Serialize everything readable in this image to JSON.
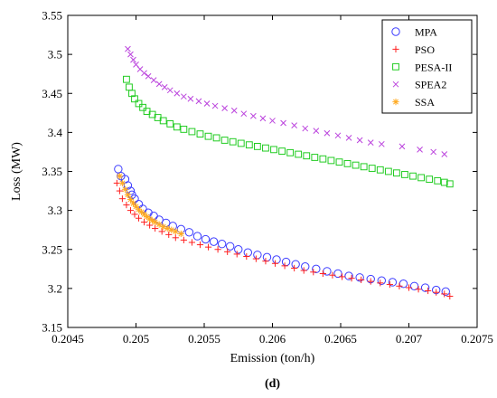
{
  "chart_data": {
    "type": "scatter",
    "title": "",
    "xlabel": "Emission (ton/h)",
    "ylabel": "Loss (MW)",
    "xlim": [
      0.2045,
      0.2075
    ],
    "ylim": [
      3.15,
      3.55
    ],
    "x_ticks": [
      0.2045,
      0.205,
      0.2055,
      0.206,
      0.2065,
      0.207,
      0.2075
    ],
    "x_tick_labels": [
      "0.2045",
      "0.205",
      "0.2055",
      "0.206",
      "0.2065",
      "0.207",
      "0.2075"
    ],
    "y_ticks": [
      3.15,
      3.2,
      3.25,
      3.3,
      3.35,
      3.4,
      3.45,
      3.5,
      3.55
    ],
    "y_tick_labels": [
      "3.15",
      "3.2",
      "3.25",
      "3.3",
      "3.35",
      "3.4",
      "3.45",
      "3.5",
      "3.55"
    ],
    "grid": false,
    "legend_position": "top-right",
    "panel_label": "(d)",
    "series": [
      {
        "name": "MPA",
        "marker": "circle",
        "color": "#3b3bff",
        "x": [
          0.20487,
          0.20489,
          0.20492,
          0.20494,
          0.20496,
          0.20497,
          0.20499,
          0.20502,
          0.20505,
          0.20509,
          0.20513,
          0.20517,
          0.20522,
          0.20527,
          0.20533,
          0.20539,
          0.20545,
          0.20551,
          0.20557,
          0.20563,
          0.20569,
          0.20575,
          0.20582,
          0.20589,
          0.20596,
          0.20603,
          0.2061,
          0.20617,
          0.20624,
          0.20632,
          0.2064,
          0.20648,
          0.20656,
          0.20664,
          0.20672,
          0.2068,
          0.20688,
          0.20696,
          0.20704,
          0.20712,
          0.2072,
          0.20727
        ],
        "y": [
          3.353,
          3.344,
          3.34,
          3.332,
          3.325,
          3.32,
          3.315,
          3.308,
          3.302,
          3.297,
          3.293,
          3.288,
          3.284,
          3.28,
          3.276,
          3.272,
          3.267,
          3.263,
          3.26,
          3.257,
          3.254,
          3.25,
          3.246,
          3.243,
          3.24,
          3.237,
          3.234,
          3.231,
          3.228,
          3.225,
          3.222,
          3.219,
          3.216,
          3.214,
          3.212,
          3.21,
          3.208,
          3.206,
          3.203,
          3.201,
          3.198,
          3.196
        ]
      },
      {
        "name": "PSO",
        "marker": "plus",
        "color": "#ff2020",
        "x": [
          0.20486,
          0.20488,
          0.2049,
          0.20493,
          0.20496,
          0.20499,
          0.20502,
          0.20506,
          0.2051,
          0.20514,
          0.20519,
          0.20524,
          0.20529,
          0.20535,
          0.20541,
          0.20547,
          0.20553,
          0.2056,
          0.20567,
          0.20574,
          0.20581,
          0.20588,
          0.20595,
          0.20602,
          0.20609,
          0.20616,
          0.20623,
          0.2063,
          0.20637,
          0.20644,
          0.20651,
          0.20658,
          0.20665,
          0.20672,
          0.20679,
          0.20686,
          0.20693,
          0.207,
          0.20707,
          0.20714,
          0.2072,
          0.20726,
          0.2073
        ],
        "y": [
          3.335,
          3.325,
          3.315,
          3.307,
          3.3,
          3.295,
          3.29,
          3.285,
          3.281,
          3.277,
          3.273,
          3.269,
          3.265,
          3.262,
          3.259,
          3.256,
          3.253,
          3.25,
          3.247,
          3.244,
          3.241,
          3.238,
          3.235,
          3.232,
          3.229,
          3.226,
          3.223,
          3.221,
          3.219,
          3.217,
          3.215,
          3.213,
          3.211,
          3.209,
          3.207,
          3.205,
          3.203,
          3.201,
          3.199,
          3.197,
          3.195,
          3.193,
          3.19
        ]
      },
      {
        "name": "PESA-II",
        "marker": "square",
        "color": "#22cc22",
        "x": [
          0.20493,
          0.20495,
          0.20497,
          0.20499,
          0.20502,
          0.20505,
          0.20508,
          0.20512,
          0.20516,
          0.2052,
          0.20525,
          0.2053,
          0.20535,
          0.20541,
          0.20547,
          0.20553,
          0.20559,
          0.20565,
          0.20571,
          0.20577,
          0.20583,
          0.20589,
          0.20595,
          0.20601,
          0.20607,
          0.20613,
          0.20619,
          0.20625,
          0.20631,
          0.20637,
          0.20643,
          0.20649,
          0.20655,
          0.20661,
          0.20667,
          0.20673,
          0.20679,
          0.20685,
          0.20691,
          0.20697,
          0.20703,
          0.20709,
          0.20715,
          0.20721,
          0.20726,
          0.2073
        ],
        "y": [
          3.468,
          3.458,
          3.45,
          3.443,
          3.437,
          3.432,
          3.427,
          3.423,
          3.419,
          3.415,
          3.411,
          3.407,
          3.404,
          3.401,
          3.398,
          3.395,
          3.393,
          3.39,
          3.388,
          3.386,
          3.384,
          3.382,
          3.38,
          3.378,
          3.376,
          3.374,
          3.372,
          3.37,
          3.368,
          3.366,
          3.364,
          3.362,
          3.36,
          3.358,
          3.356,
          3.354,
          3.352,
          3.35,
          3.348,
          3.346,
          3.344,
          3.342,
          3.34,
          3.338,
          3.336,
          3.334
        ]
      },
      {
        "name": "SPEA2",
        "marker": "cross",
        "color": "#bb44dd",
        "x": [
          0.20494,
          0.20496,
          0.20498,
          0.205,
          0.20503,
          0.20506,
          0.20509,
          0.20513,
          0.20517,
          0.20521,
          0.20525,
          0.2053,
          0.20535,
          0.2054,
          0.20546,
          0.20552,
          0.20558,
          0.20565,
          0.20572,
          0.20579,
          0.20586,
          0.20593,
          0.206,
          0.20608,
          0.20616,
          0.20624,
          0.20632,
          0.2064,
          0.20648,
          0.20656,
          0.20664,
          0.20672,
          0.2068,
          0.20695,
          0.20708,
          0.20718,
          0.20726
        ],
        "y": [
          3.507,
          3.5,
          3.493,
          3.487,
          3.481,
          3.476,
          3.472,
          3.467,
          3.462,
          3.458,
          3.454,
          3.45,
          3.446,
          3.443,
          3.44,
          3.437,
          3.434,
          3.431,
          3.428,
          3.424,
          3.421,
          3.418,
          3.415,
          3.412,
          3.409,
          3.405,
          3.402,
          3.399,
          3.396,
          3.393,
          3.39,
          3.387,
          3.385,
          3.382,
          3.378,
          3.375,
          3.372
        ]
      },
      {
        "name": "SSA",
        "marker": "asterisk",
        "color": "#ffaa22",
        "x": [
          0.20488,
          0.2049,
          0.20492,
          0.20494,
          0.20496,
          0.20498,
          0.205,
          0.20502,
          0.20504,
          0.20506,
          0.20508,
          0.2051,
          0.20512,
          0.20514,
          0.20517,
          0.2052,
          0.20523,
          0.20526,
          0.20529,
          0.20533
        ],
        "y": [
          3.344,
          3.335,
          3.327,
          3.32,
          3.314,
          3.309,
          3.305,
          3.301,
          3.298,
          3.295,
          3.292,
          3.289,
          3.287,
          3.285,
          3.282,
          3.279,
          3.277,
          3.275,
          3.273,
          3.27
        ]
      }
    ]
  }
}
